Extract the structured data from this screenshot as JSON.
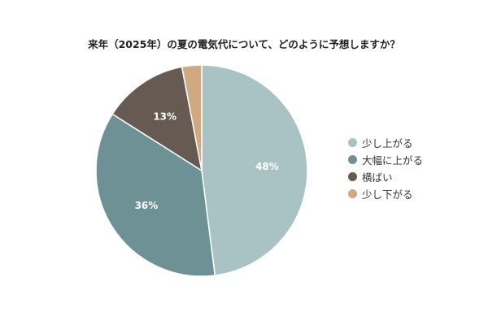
{
  "chart_data": {
    "type": "pie",
    "title": "来年（2025年）の夏の電気代について、どのように予想しますか？",
    "categories": [
      "少し上がる",
      "大幅に上がる",
      "横ばい",
      "少し下がる"
    ],
    "values": [
      48,
      36,
      13,
      3
    ],
    "data_labels": [
      "48%",
      "36%",
      "13%",
      ""
    ],
    "colors": [
      "#a9c2c3",
      "#6e9196",
      "#665a52",
      "#d1a981"
    ],
    "legend_position": "right",
    "start": "top",
    "direction": "clockwise"
  }
}
